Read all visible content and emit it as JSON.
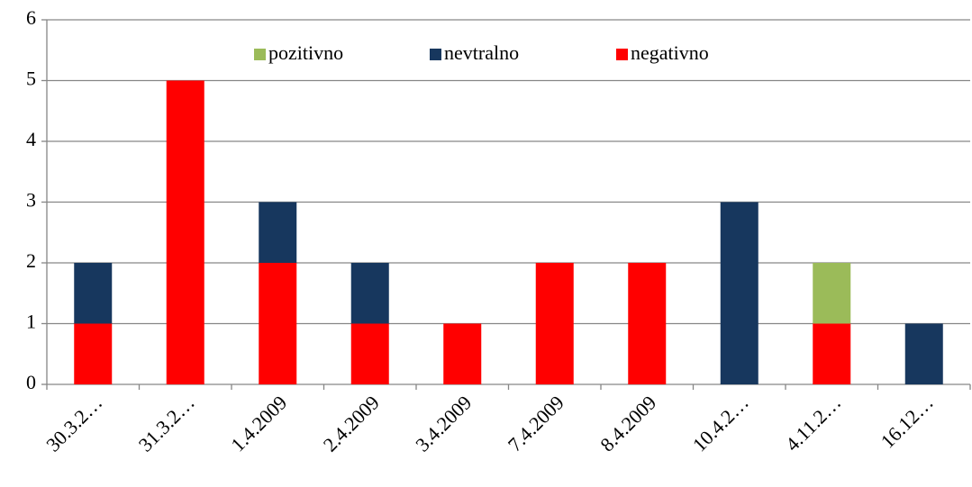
{
  "chart_data": {
    "type": "bar",
    "stacked": true,
    "categories": [
      "30.3.2…",
      "31.3.2…",
      "1.4.2009",
      "2.4.2009",
      "3.4.2009",
      "7.4.2009",
      "8.4.2009",
      "10.4.2…",
      "4.11.2…",
      "16.12…"
    ],
    "series": [
      {
        "name": "pozitivno",
        "color": "#9bbb59",
        "values": [
          0,
          0,
          0,
          0,
          0,
          0,
          0,
          0,
          1,
          0
        ]
      },
      {
        "name": "nevtralno",
        "color": "#17375e",
        "values": [
          1,
          0,
          1,
          1,
          0,
          0,
          0,
          3,
          0,
          1
        ]
      },
      {
        "name": "negativno",
        "color": "#ff0000",
        "values": [
          1,
          5,
          2,
          1,
          1,
          2,
          2,
          0,
          1,
          0
        ]
      }
    ],
    "ylim": [
      0,
      6
    ],
    "yticks": [
      0,
      1,
      2,
      3,
      4,
      5,
      6
    ],
    "grid": true,
    "legend": "top"
  }
}
